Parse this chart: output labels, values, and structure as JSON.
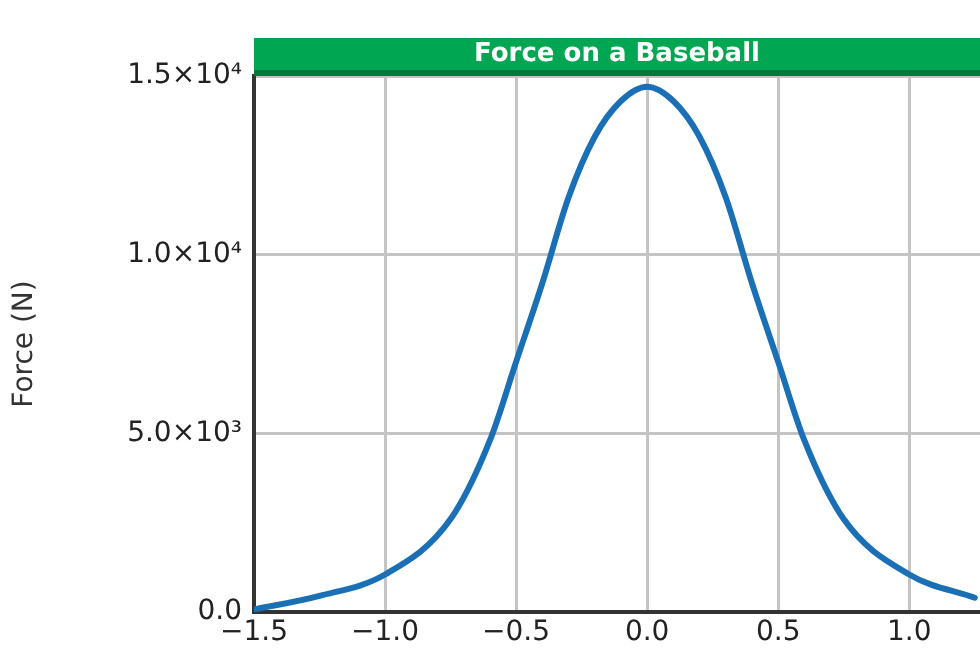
{
  "chart_data": {
    "type": "line",
    "title": "Force on a Baseball",
    "ylabel": "Force (N)",
    "x": [
      -1.5,
      -1.25,
      -1.0,
      -0.75,
      -0.6,
      -0.5,
      -0.4,
      -0.3,
      -0.2,
      -0.1,
      0,
      0.1,
      0.2,
      0.3,
      0.4,
      0.5,
      0.6,
      0.75,
      1.0,
      1.25
    ],
    "series": [
      {
        "color": "#1a6fb5",
        "values": [
          70,
          450,
          1050,
          2600,
          4800,
          7000,
          9200,
          11600,
          13300,
          14300,
          14700,
          14300,
          13300,
          11600,
          9200,
          7000,
          4800,
          2600,
          1050,
          400
        ]
      }
    ],
    "xlim": [
      -1.5,
      1.27
    ],
    "xticks": [
      {
        "value": -1.5,
        "label": "−1.5"
      },
      {
        "value": -1.0,
        "label": "−1.0"
      },
      {
        "value": -0.5,
        "label": "−0.5"
      },
      {
        "value": 0,
        "label": "0.0"
      },
      {
        "value": 0.5,
        "label": "0.5"
      },
      {
        "value": 1.0,
        "label": "1.0"
      }
    ],
    "ylim": [
      0,
      15000
    ],
    "yticks": [
      {
        "value": 0,
        "label": "0.0"
      },
      {
        "value": 5000,
        "label": "5.0×10³"
      },
      {
        "value": 10000,
        "label": "1.0×10⁴"
      },
      {
        "value": 15000,
        "label": "1.5×10⁴"
      }
    ],
    "grid": true,
    "marker": "none",
    "line_style": "solid",
    "legend": false
  }
}
